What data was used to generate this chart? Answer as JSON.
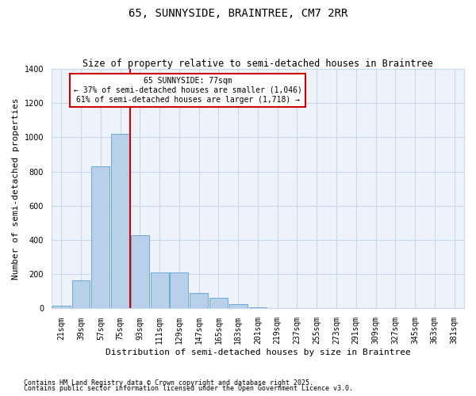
{
  "title": "65, SUNNYSIDE, BRAINTREE, CM7 2RR",
  "subtitle": "Size of property relative to semi-detached houses in Braintree",
  "xlabel": "Distribution of semi-detached houses by size in Braintree",
  "ylabel": "Number of semi-detached properties",
  "categories": [
    "21sqm",
    "39sqm",
    "57sqm",
    "75sqm",
    "93sqm",
    "111sqm",
    "129sqm",
    "147sqm",
    "165sqm",
    "183sqm",
    "201sqm",
    "219sqm",
    "237sqm",
    "255sqm",
    "273sqm",
    "291sqm",
    "309sqm",
    "327sqm",
    "345sqm",
    "363sqm",
    "381sqm"
  ],
  "values": [
    15,
    165,
    830,
    1020,
    430,
    210,
    210,
    90,
    60,
    25,
    5,
    0,
    0,
    0,
    0,
    0,
    0,
    0,
    0,
    0,
    0
  ],
  "bar_color": "#b8d0ea",
  "bar_edge_color": "#6aaad4",
  "grid_color": "#c8d8ec",
  "background_color": "#ffffff",
  "plot_bg_color": "#eef2fa",
  "vline_x_index": 4,
  "vline_color": "#cc0000",
  "annotation_title": "65 SUNNYSIDE: 77sqm",
  "annotation_line2": "← 37% of semi-detached houses are smaller (1,046)",
  "annotation_line3": "61% of semi-detached houses are larger (1,718) →",
  "annotation_box_color": "#ffffff",
  "annotation_border_color": "#cc0000",
  "ylim": [
    0,
    1400
  ],
  "yticks": [
    0,
    200,
    400,
    600,
    800,
    1000,
    1200,
    1400
  ],
  "footnote1": "Contains HM Land Registry data © Crown copyright and database right 2025.",
  "footnote2": "Contains public sector information licensed under the Open Government Licence v3.0.",
  "title_fontsize": 10,
  "subtitle_fontsize": 8.5,
  "tick_fontsize": 7,
  "label_fontsize": 8,
  "annotation_fontsize": 7,
  "footnote_fontsize": 6
}
